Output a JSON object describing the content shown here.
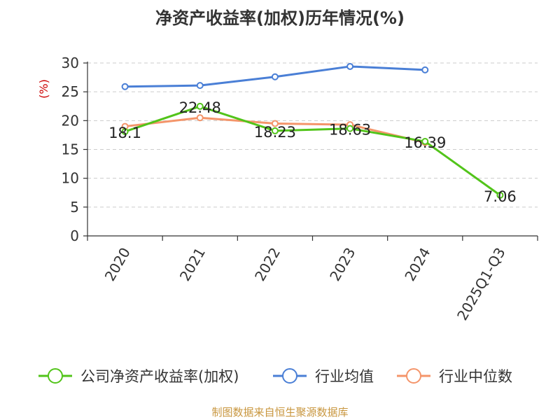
{
  "title": "净资产收益率(加权)历年情况(%)",
  "source": "制图数据来自恒生聚源数据库",
  "chart_data": {
    "type": "line",
    "ylabel": "(%)",
    "categories": [
      "2020",
      "2021",
      "2022",
      "2023",
      "2024",
      "2025Q1-Q3"
    ],
    "ylim": [
      0,
      30
    ],
    "yticks": [
      0,
      5,
      10,
      15,
      20,
      25,
      30
    ],
    "grid": true,
    "legend_position": "bottom",
    "series": [
      {
        "name": "公司净资产收益率(加权)",
        "color": "#52c41a",
        "values": [
          18.1,
          22.48,
          18.23,
          18.63,
          16.39,
          7.06
        ],
        "labels": [
          "18.1",
          "22.48",
          "18.23",
          "18.63",
          "16.39",
          "7.06"
        ]
      },
      {
        "name": "行业均值",
        "color": "#4a7fd6",
        "values": [
          25.9,
          26.1,
          27.6,
          29.4,
          28.8,
          null
        ]
      },
      {
        "name": "行业中位数",
        "color": "#f4956a",
        "values": [
          19.0,
          20.5,
          19.5,
          19.3,
          16.2,
          null
        ]
      }
    ]
  }
}
